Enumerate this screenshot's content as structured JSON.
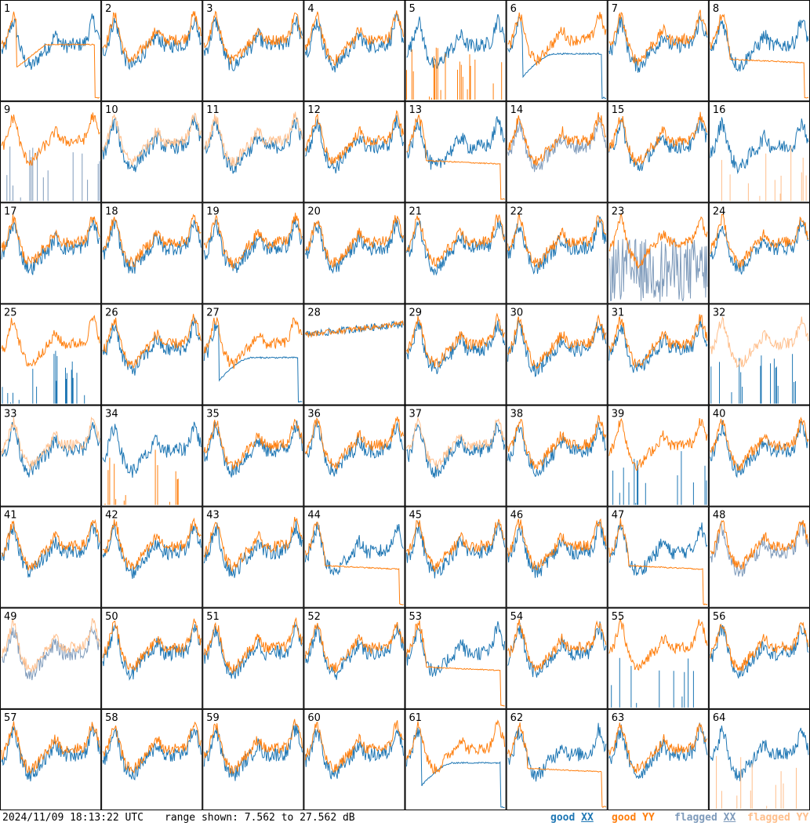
{
  "chart_data": {
    "type": "line",
    "panels": [
      {
        "id": "1",
        "xx": "good",
        "yy": "good",
        "shape": "dropout_yy"
      },
      {
        "id": "2",
        "xx": "good",
        "yy": "good",
        "shape": "normal"
      },
      {
        "id": "3",
        "xx": "good",
        "yy": "good",
        "shape": "normal"
      },
      {
        "id": "4",
        "xx": "good",
        "yy": "good",
        "shape": "normal"
      },
      {
        "id": "5",
        "xx": "good",
        "yy": "good",
        "shape": "spikes_yy"
      },
      {
        "id": "6",
        "xx": "good",
        "yy": "good",
        "shape": "dropout_xx"
      },
      {
        "id": "7",
        "xx": "good",
        "yy": "good",
        "shape": "normal"
      },
      {
        "id": "8",
        "xx": "good",
        "yy": "good",
        "shape": "flat_yy"
      },
      {
        "id": "9",
        "xx": "flagged",
        "yy": "good",
        "shape": "spikes_xx"
      },
      {
        "id": "10",
        "xx": "good",
        "yy": "flagged",
        "shape": "normal"
      },
      {
        "id": "11",
        "xx": "good",
        "yy": "flagged",
        "shape": "normal"
      },
      {
        "id": "12",
        "xx": "good",
        "yy": "good",
        "shape": "normal"
      },
      {
        "id": "13",
        "xx": "good",
        "yy": "good",
        "shape": "flat_yy"
      },
      {
        "id": "14",
        "xx": "flagged",
        "yy": "good",
        "shape": "normal"
      },
      {
        "id": "15",
        "xx": "good",
        "yy": "good",
        "shape": "normal"
      },
      {
        "id": "16",
        "xx": "good",
        "yy": "flagged",
        "shape": "spikes_yy"
      },
      {
        "id": "17",
        "xx": "good",
        "yy": "good",
        "shape": "normal"
      },
      {
        "id": "18",
        "xx": "good",
        "yy": "good",
        "shape": "normal"
      },
      {
        "id": "19",
        "xx": "good",
        "yy": "good",
        "shape": "normal"
      },
      {
        "id": "20",
        "xx": "good",
        "yy": "good",
        "shape": "normal"
      },
      {
        "id": "21",
        "xx": "good",
        "yy": "good",
        "shape": "normal"
      },
      {
        "id": "22",
        "xx": "good",
        "yy": "good",
        "shape": "normal"
      },
      {
        "id": "23",
        "xx": "flagged",
        "yy": "good",
        "shape": "noise_xx"
      },
      {
        "id": "24",
        "xx": "good",
        "yy": "good",
        "shape": "normal"
      },
      {
        "id": "25",
        "xx": "good",
        "yy": "good",
        "shape": "spikes_xx"
      },
      {
        "id": "26",
        "xx": "good",
        "yy": "good",
        "shape": "normal"
      },
      {
        "id": "27",
        "xx": "good",
        "yy": "good",
        "shape": "dropout_xx"
      },
      {
        "id": "28",
        "xx": "good",
        "yy": "good",
        "shape": "rising"
      },
      {
        "id": "29",
        "xx": "good",
        "yy": "good",
        "shape": "normal"
      },
      {
        "id": "30",
        "xx": "good",
        "yy": "good",
        "shape": "normal"
      },
      {
        "id": "31",
        "xx": "good",
        "yy": "good",
        "shape": "normal"
      },
      {
        "id": "32",
        "xx": "good",
        "yy": "flagged",
        "shape": "spikes_xx"
      },
      {
        "id": "33",
        "xx": "good",
        "yy": "flagged",
        "shape": "normal"
      },
      {
        "id": "34",
        "xx": "good",
        "yy": "good",
        "shape": "spikes_yy"
      },
      {
        "id": "35",
        "xx": "good",
        "yy": "good",
        "shape": "normal"
      },
      {
        "id": "36",
        "xx": "good",
        "yy": "good",
        "shape": "normal"
      },
      {
        "id": "37",
        "xx": "good",
        "yy": "flagged",
        "shape": "normal"
      },
      {
        "id": "38",
        "xx": "good",
        "yy": "good",
        "shape": "normal"
      },
      {
        "id": "39",
        "xx": "good",
        "yy": "good",
        "shape": "spikes_xx"
      },
      {
        "id": "40",
        "xx": "good",
        "yy": "good",
        "shape": "normal"
      },
      {
        "id": "41",
        "xx": "good",
        "yy": "good",
        "shape": "normal"
      },
      {
        "id": "42",
        "xx": "good",
        "yy": "good",
        "shape": "normal"
      },
      {
        "id": "43",
        "xx": "good",
        "yy": "good",
        "shape": "normal"
      },
      {
        "id": "44",
        "xx": "good",
        "yy": "good",
        "shape": "flat_yy"
      },
      {
        "id": "45",
        "xx": "good",
        "yy": "good",
        "shape": "normal"
      },
      {
        "id": "46",
        "xx": "good",
        "yy": "good",
        "shape": "normal"
      },
      {
        "id": "47",
        "xx": "good",
        "yy": "good",
        "shape": "flat_yy"
      },
      {
        "id": "48",
        "xx": "flagged",
        "yy": "good",
        "shape": "normal"
      },
      {
        "id": "49",
        "xx": "flagged",
        "yy": "flagged",
        "shape": "normal"
      },
      {
        "id": "50",
        "xx": "good",
        "yy": "good",
        "shape": "normal"
      },
      {
        "id": "51",
        "xx": "good",
        "yy": "good",
        "shape": "normal"
      },
      {
        "id": "52",
        "xx": "good",
        "yy": "good",
        "shape": "normal"
      },
      {
        "id": "53",
        "xx": "good",
        "yy": "good",
        "shape": "flat_yy"
      },
      {
        "id": "54",
        "xx": "good",
        "yy": "good",
        "shape": "normal"
      },
      {
        "id": "55",
        "xx": "good",
        "yy": "good",
        "shape": "spikes_xx"
      },
      {
        "id": "56",
        "xx": "good",
        "yy": "good",
        "shape": "normal"
      },
      {
        "id": "57",
        "xx": "good",
        "yy": "good",
        "shape": "normal"
      },
      {
        "id": "58",
        "xx": "good",
        "yy": "good",
        "shape": "normal"
      },
      {
        "id": "59",
        "xx": "good",
        "yy": "good",
        "shape": "normal"
      },
      {
        "id": "60",
        "xx": "good",
        "yy": "good",
        "shape": "normal"
      },
      {
        "id": "61",
        "xx": "good",
        "yy": "good",
        "shape": "dropout_xx"
      },
      {
        "id": "62",
        "xx": "good",
        "yy": "good",
        "shape": "flat_yy"
      },
      {
        "id": "63",
        "xx": "good",
        "yy": "good",
        "shape": "normal"
      },
      {
        "id": "64",
        "xx": "good",
        "yy": "flagged",
        "shape": "spikes_yy"
      }
    ],
    "grid_rows": 8,
    "grid_cols": 8,
    "y_range_db": [
      7.562,
      27.562
    ],
    "series": [
      {
        "name": "good XX"
      },
      {
        "name": "good YY"
      },
      {
        "name": "flagged XX"
      },
      {
        "name": "flagged YY"
      }
    ]
  },
  "colors": {
    "good_xx": "#1f77b4",
    "good_yy": "#ff7f0e",
    "flagged_xx": "#7f9bbb",
    "flagged_yy": "#ffbf8c"
  },
  "footer": {
    "timestamp": "2024/11/09 18:13:22 UTC",
    "range_text": "range shown: 7.562 to 27.562 dB",
    "legend_good": "good",
    "legend_flagged": "flagged",
    "legend_xx": "XX",
    "legend_yy": "YY"
  }
}
